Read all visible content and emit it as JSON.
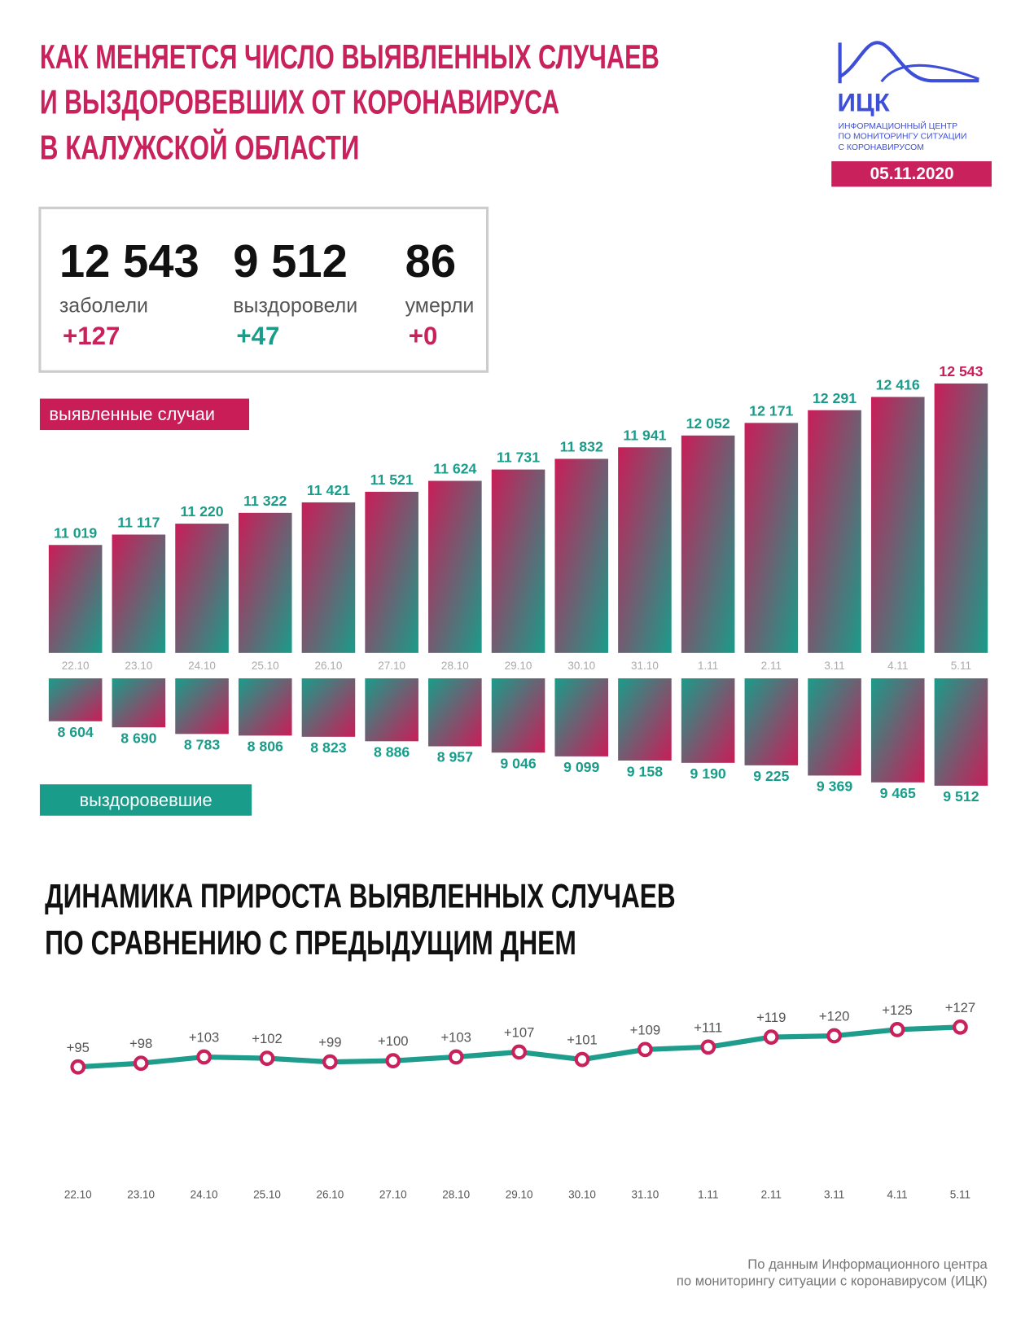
{
  "header": {
    "title": [
      "КАК МЕНЯЕТСЯ ЧИСЛО ВЫЯВЛЕННЫХ СЛУЧАЕВ",
      "И ВЫЗДОРОВЕВШИХ ОТ КОРОНАВИРУСА",
      "В КАЛУЖСКОЙ ОБЛАСТИ"
    ],
    "logo": {
      "name": "ИЦК",
      "subtitle": [
        "ИНФОРМАЦИОННЫЙ ЦЕНТР",
        "ПО МОНИТОРИНГУ СИТУАЦИИ",
        "С КОРОНАВИРУСОМ"
      ]
    },
    "date": "05.11.2020"
  },
  "summary": [
    {
      "value": "12 543",
      "label": "заболели",
      "change": "+127"
    },
    {
      "value": "9 512",
      "label": "выздоровели",
      "change": "+47"
    },
    {
      "value": "86",
      "label": "умерли",
      "change": "+0"
    }
  ],
  "chart_data": [
    {
      "type": "bar",
      "categories": [
        "22.10",
        "23.10",
        "24.10",
        "25.10",
        "26.10",
        "27.10",
        "28.10",
        "29.10",
        "30.10",
        "31.10",
        "1.11",
        "2.11",
        "3.11",
        "4.11",
        "5.11"
      ],
      "series": [
        {
          "name": "выявленные случаи",
          "color": "#c91d58",
          "values": [
            11019,
            11117,
            11220,
            11322,
            11421,
            11521,
            11624,
            11731,
            11832,
            11941,
            12052,
            12171,
            12291,
            12416,
            12543
          ],
          "value_labels": [
            "11 019",
            "11 117",
            "11 220",
            "11 322",
            "11 421",
            "11 521",
            "11 624",
            "11 731",
            "11 832",
            "11 941",
            "12 052",
            "12 171",
            "12 291",
            "12 416",
            "12 543"
          ]
        },
        {
          "name": "выздоровевшие",
          "color": "#1a9c8a",
          "axis": "y2",
          "values": [
            8604,
            8690,
            8783,
            8806,
            8823,
            8886,
            8957,
            9046,
            9099,
            9158,
            9190,
            9225,
            9369,
            9465,
            9512
          ],
          "value_labels": [
            "8 604",
            "8 690",
            "8 783",
            "8 806",
            "8 823",
            "8 886",
            "8 957",
            "9 046",
            "9 099",
            "9 158",
            "9 190",
            "9 225",
            "9 369",
            "9 465",
            "9 512"
          ]
        }
      ],
      "ylim": [
        10000,
        12600
      ],
      "y2lim": [
        8000,
        9600
      ]
    },
    {
      "type": "line",
      "title": [
        "ДИНАМИКА ПРИРОСТА ВЫЯВЛЕННЫХ СЛУЧАЕВ",
        "ПО СРАВНЕНИЮ С ПРЕДЫДУЩИМ ДНЕМ"
      ],
      "categories": [
        "22.10",
        "23.10",
        "24.10",
        "25.10",
        "26.10",
        "27.10",
        "28.10",
        "29.10",
        "30.10",
        "31.10",
        "1.11",
        "2.11",
        "3.11",
        "4.11",
        "5.11"
      ],
      "values": [
        95,
        98,
        103,
        102,
        99,
        100,
        103,
        107,
        101,
        109,
        111,
        119,
        120,
        125,
        127
      ],
      "value_labels": [
        "+95",
        "+98",
        "+103",
        "+102",
        "+99",
        "+100",
        "+103",
        "+107",
        "+101",
        "+109",
        "+111",
        "+119",
        "+120",
        "+125",
        "+127"
      ],
      "color": "#1e9c8c",
      "marker_color": "#c8215b",
      "ylim": [
        0,
        130
      ]
    }
  ],
  "footer": [
    "По данным Информационного центра",
    "по мониторингу ситуации с коронавирусом (ИЦК)"
  ]
}
